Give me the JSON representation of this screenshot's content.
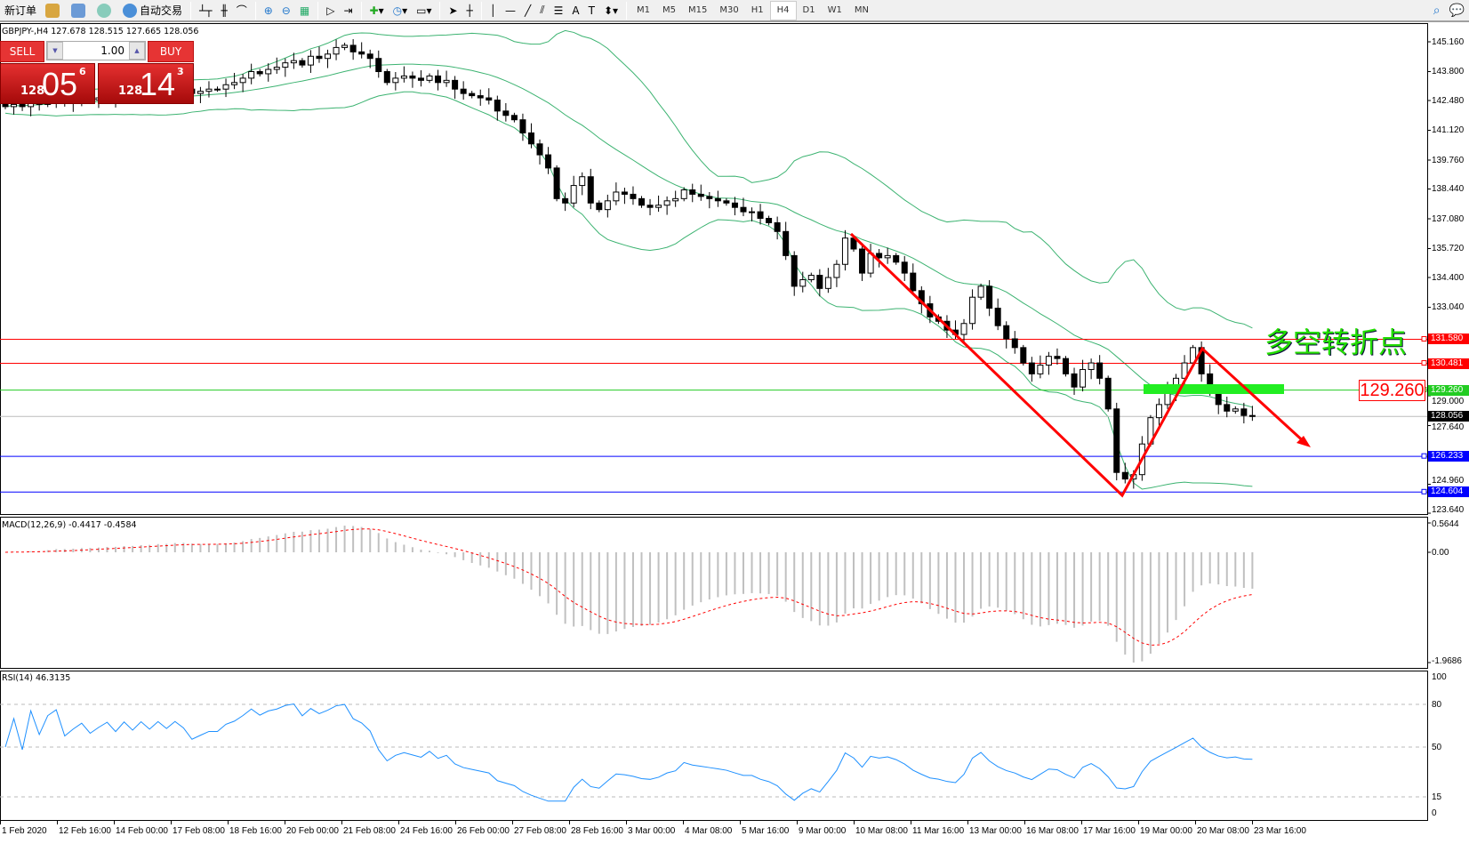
{
  "toolbar": {
    "new_order": "新订单",
    "auto_trading": "自动交易",
    "timeframes": [
      "M1",
      "M5",
      "M15",
      "M30",
      "H1",
      "H4",
      "D1",
      "W1",
      "MN"
    ],
    "active_timeframe": "H4"
  },
  "chart": {
    "header": "GBPJPY-,H4  127.678 128.515 127.665 128.056",
    "price_ticks": [
      "145.160",
      "143.800",
      "142.480",
      "141.120",
      "139.760",
      "138.440",
      "137.080",
      "135.720",
      "134.400",
      "133.040",
      "129.000",
      "127.640",
      "124.960",
      "123.640"
    ],
    "price_tick_values": [
      145.16,
      143.8,
      142.48,
      141.12,
      139.76,
      138.44,
      137.08,
      135.72,
      134.4,
      133.04,
      129.0,
      127.64,
      124.96,
      123.64
    ],
    "levels": [
      {
        "label": "131.580",
        "value": 131.58,
        "color": "#ff0000"
      },
      {
        "label": "130.481",
        "value": 130.481,
        "color": "#ff0000"
      },
      {
        "label": "129.260",
        "value": 129.26,
        "color": "#22cc22"
      },
      {
        "label": "126.233",
        "value": 126.233,
        "color": "#0000ff"
      },
      {
        "label": "124.604",
        "value": 124.604,
        "color": "#0000ff"
      }
    ],
    "current_price": {
      "label": "128.056",
      "value": 128.056
    },
    "annotation_text": "多空转折点",
    "price_box": "129.260",
    "closes": [
      142.2,
      142.3,
      142.2,
      142.4,
      142.3,
      142.5,
      142.6,
      142.4,
      142.5,
      142.6,
      142.5,
      142.6,
      142.7,
      142.6,
      142.8,
      142.7,
      142.9,
      142.8,
      143.0,
      142.9,
      143.1,
      143.0,
      142.8,
      142.9,
      143.0,
      143.0,
      143.2,
      143.3,
      143.5,
      143.8,
      143.7,
      143.9,
      144.0,
      144.2,
      144.3,
      144.1,
      144.5,
      144.4,
      144.6,
      144.9,
      145.0,
      144.7,
      144.6,
      144.4,
      143.8,
      143.3,
      143.5,
      143.6,
      143.5,
      143.4,
      143.6,
      143.3,
      143.4,
      143.0,
      142.8,
      142.7,
      142.6,
      142.5,
      142.0,
      141.8,
      141.6,
      141.0,
      140.5,
      140.0,
      139.4,
      138.0,
      137.8,
      138.6,
      139.0,
      137.8,
      137.5,
      137.9,
      138.3,
      138.2,
      138.0,
      137.7,
      137.6,
      137.7,
      137.9,
      138.0,
      138.4,
      138.2,
      138.1,
      138.0,
      137.9,
      137.8,
      137.6,
      137.4,
      137.4,
      137.1,
      136.9,
      136.5,
      135.4,
      134.0,
      134.3,
      134.5,
      133.9,
      134.4,
      135.0,
      136.2,
      135.7,
      134.6,
      135.5,
      135.3,
      135.4,
      135.1,
      134.6,
      133.8,
      133.2,
      132.6,
      132.4,
      132.0,
      131.8,
      132.3,
      133.5,
      134.0,
      133.0,
      132.2,
      131.6,
      131.2,
      130.5,
      130.0,
      130.4,
      130.8,
      130.7,
      130.0,
      129.4,
      130.2,
      130.5,
      129.8,
      128.4,
      125.5,
      125.2,
      125.4,
      126.8,
      128.0,
      128.6,
      129.2,
      129.8,
      130.5,
      131.2,
      130.0,
      129.2,
      128.6,
      128.3,
      128.4,
      128.1,
      128.056
    ]
  },
  "trade_panel": {
    "sell": "SELL",
    "buy": "BUY",
    "lot": "1.00",
    "bid": {
      "small": "128",
      "main": "05",
      "pip": "6"
    },
    "ask": {
      "small": "128",
      "main": "14",
      "pip": "3"
    }
  },
  "macd": {
    "label": "MACD(12,26,9) -0.4417 -0.4584",
    "ticks": [
      "0.5644",
      "0.00",
      "-1.9686"
    ]
  },
  "rsi": {
    "label": "RSI(14) 46.3135",
    "ticks": [
      "100",
      "80",
      "50",
      "15",
      "0"
    ]
  },
  "time_labels": [
    "1 Feb 2020",
    "12 Feb 16:00",
    "14 Feb 00:00",
    "17 Feb 08:00",
    "18 Feb 16:00",
    "20 Feb 00:00",
    "21 Feb 08:00",
    "24 Feb 16:00",
    "26 Feb 00:00",
    "27 Feb 08:00",
    "28 Feb 16:00",
    "3 Mar 00:00",
    "4 Mar 08:00",
    "5 Mar 16:00",
    "9 Mar 00:00",
    "10 Mar 08:00",
    "11 Mar 16:00",
    "13 Mar 00:00",
    "16 Mar 08:00",
    "17 Mar 16:00",
    "19 Mar 00:00",
    "20 Mar 08:00",
    "23 Mar 16:00"
  ],
  "colors": {
    "bands": "#3cb371",
    "trend": "#ff0000",
    "macd_signal": "#ff0000",
    "macd_hist": "#c0c0c0",
    "rsi": "#1e90ff"
  }
}
